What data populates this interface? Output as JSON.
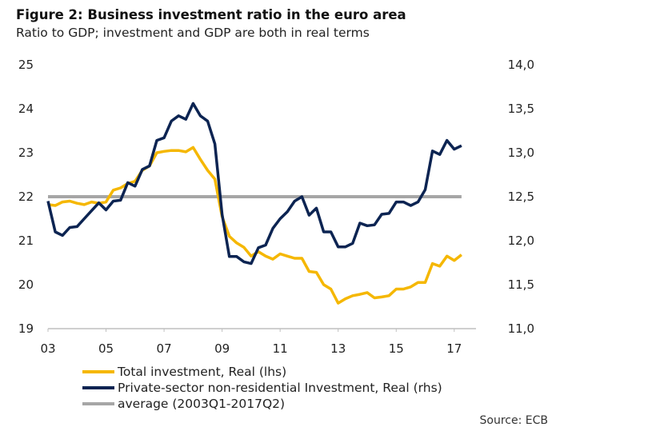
{
  "title": "Figure 2: Business investment ratio in the euro area",
  "subtitle": "Ratio to GDP; investment and GDP are both in real terms",
  "source": "Source: ECB",
  "colors": {
    "total": "#F5B700",
    "private": "#0C2452",
    "average": "#A6A6A6",
    "axis": "#BFBFBF"
  },
  "chart_data": {
    "type": "line",
    "title": "Figure 2: Business investment ratio in the euro area",
    "subtitle": "Ratio to GDP; investment and GDP are both in real terms",
    "xlabel": "",
    "ylabel": "",
    "x_tick_labels": [
      "03",
      "05",
      "07",
      "09",
      "11",
      "13",
      "15",
      "17"
    ],
    "x_tick_years": [
      2003,
      2005,
      2007,
      2009,
      2011,
      2013,
      2015,
      2017
    ],
    "xlim": [
      2003,
      2017.75
    ],
    "ylim_left": [
      19,
      25
    ],
    "ylim_right": [
      11.0,
      14.0
    ],
    "left_ticks": [
      "19",
      "20",
      "21",
      "22",
      "23",
      "24",
      "25"
    ],
    "right_ticks": [
      "11,0",
      "11,5",
      "12,0",
      "12,5",
      "13,0",
      "13,5",
      "14,0"
    ],
    "grid": false,
    "legend_position": "bottom",
    "series": [
      {
        "name": "Total investment, Real (lhs)",
        "axis": "left",
        "x": [
          2003.0,
          2003.25,
          2003.5,
          2003.75,
          2004.0,
          2004.25,
          2004.5,
          2004.75,
          2005.0,
          2005.25,
          2005.5,
          2005.75,
          2006.0,
          2006.25,
          2006.5,
          2006.75,
          2007.0,
          2007.25,
          2007.5,
          2007.75,
          2008.0,
          2008.25,
          2008.5,
          2008.75,
          2009.0,
          2009.25,
          2009.5,
          2009.75,
          2010.0,
          2010.25,
          2010.5,
          2010.75,
          2011.0,
          2011.25,
          2011.5,
          2011.75,
          2012.0,
          2012.25,
          2012.5,
          2012.75,
          2013.0,
          2013.25,
          2013.5,
          2013.75,
          2014.0,
          2014.25,
          2014.5,
          2014.75,
          2015.0,
          2015.25,
          2015.5,
          2015.75,
          2016.0,
          2016.25,
          2016.5,
          2016.75,
          2017.0,
          2017.25
        ],
        "y": [
          21.82,
          21.8,
          21.88,
          21.9,
          21.85,
          21.82,
          21.88,
          21.85,
          21.88,
          22.15,
          22.2,
          22.3,
          22.35,
          22.6,
          22.7,
          23.0,
          23.03,
          23.05,
          23.05,
          23.02,
          23.12,
          22.85,
          22.6,
          22.4,
          21.55,
          21.1,
          20.95,
          20.85,
          20.65,
          20.75,
          20.65,
          20.58,
          20.7,
          20.65,
          20.6,
          20.6,
          20.3,
          20.28,
          20.0,
          19.9,
          19.58,
          19.68,
          19.75,
          19.78,
          19.82,
          19.7,
          19.72,
          19.75,
          19.9,
          19.9,
          19.95,
          20.05,
          20.05,
          20.48,
          20.42,
          20.65,
          20.55,
          20.68
        ]
      },
      {
        "name": "Private-sector non-residential Investment, Real (rhs)",
        "axis": "right",
        "x": [
          2003.0,
          2003.25,
          2003.5,
          2003.75,
          2004.0,
          2004.25,
          2004.5,
          2004.75,
          2005.0,
          2005.25,
          2005.5,
          2005.75,
          2006.0,
          2006.25,
          2006.5,
          2006.75,
          2007.0,
          2007.25,
          2007.5,
          2007.75,
          2008.0,
          2008.25,
          2008.5,
          2008.75,
          2009.0,
          2009.25,
          2009.5,
          2009.75,
          2010.0,
          2010.25,
          2010.5,
          2010.75,
          2011.0,
          2011.25,
          2011.5,
          2011.75,
          2012.0,
          2012.25,
          2012.5,
          2012.75,
          2013.0,
          2013.25,
          2013.5,
          2013.75,
          2014.0,
          2014.25,
          2014.5,
          2014.75,
          2015.0,
          2015.25,
          2015.5,
          2015.75,
          2016.0,
          2016.25,
          2016.5,
          2016.75,
          2017.0,
          2017.25
        ],
        "y": [
          12.45,
          12.1,
          12.06,
          12.15,
          12.16,
          12.25,
          12.34,
          12.43,
          12.35,
          12.45,
          12.46,
          12.66,
          12.62,
          12.81,
          12.85,
          13.14,
          13.17,
          13.36,
          13.42,
          13.38,
          13.56,
          13.42,
          13.36,
          13.1,
          12.3,
          11.82,
          11.82,
          11.76,
          11.74,
          11.92,
          11.95,
          12.14,
          12.25,
          12.33,
          12.45,
          12.5,
          12.29,
          12.37,
          12.1,
          12.1,
          11.93,
          11.93,
          11.97,
          12.2,
          12.17,
          12.18,
          12.3,
          12.31,
          12.44,
          12.44,
          12.4,
          12.44,
          12.58,
          13.02,
          12.98,
          13.14,
          13.04,
          13.08
        ]
      },
      {
        "name": "average (2003Q1-2017Q2)",
        "axis": "left",
        "x": [
          2003.0,
          2017.25
        ],
        "y": [
          22.0,
          22.0
        ]
      }
    ]
  }
}
